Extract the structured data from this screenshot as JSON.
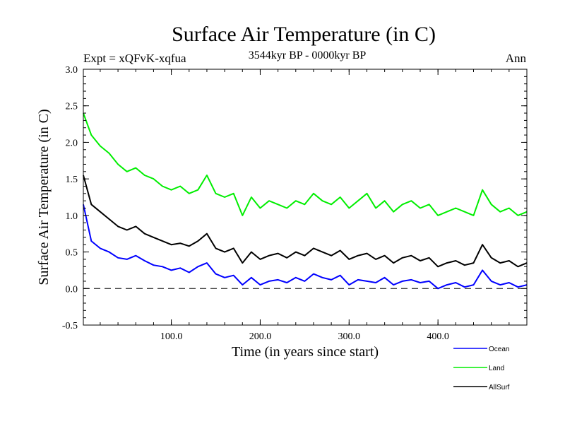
{
  "chart_data": {
    "type": "line",
    "title": "Surface Air Temperature (in C)",
    "subtitle": "3544kyr BP - 0000kyr BP",
    "experiment": "Expt = xQFvK-xqfua",
    "season": "Ann",
    "xlabel": "Time (in years since start)",
    "ylabel": "Surface Air Temperature (in C)",
    "xlim": [
      1,
      500
    ],
    "ylim": [
      -0.5,
      3.0
    ],
    "x_ticks": [
      100,
      200,
      300,
      400
    ],
    "x_tick_labels": [
      "100.0",
      "200.0",
      "300.0",
      "400.0"
    ],
    "y_ticks": [
      -0.5,
      0.0,
      0.5,
      1.0,
      1.5,
      2.0,
      2.5,
      3.0
    ],
    "y_tick_labels": [
      "-0.5",
      "0.0",
      "0.5",
      "1.0",
      "1.5",
      "2.0",
      "2.5",
      "3.0"
    ],
    "reference_line": 0.0,
    "x": [
      1,
      10,
      20,
      30,
      40,
      50,
      60,
      70,
      80,
      90,
      100,
      110,
      120,
      130,
      140,
      150,
      160,
      170,
      180,
      190,
      200,
      210,
      220,
      230,
      240,
      250,
      260,
      270,
      280,
      290,
      300,
      310,
      320,
      330,
      340,
      350,
      360,
      370,
      380,
      390,
      400,
      410,
      420,
      430,
      440,
      450,
      460,
      470,
      480,
      490,
      500
    ],
    "series": [
      {
        "name": "Ocean",
        "color": "#0000ff",
        "values": [
          1.15,
          0.65,
          0.55,
          0.5,
          0.42,
          0.4,
          0.45,
          0.38,
          0.32,
          0.3,
          0.25,
          0.28,
          0.22,
          0.3,
          0.35,
          0.2,
          0.15,
          0.18,
          0.05,
          0.15,
          0.05,
          0.1,
          0.12,
          0.08,
          0.15,
          0.1,
          0.2,
          0.15,
          0.12,
          0.18,
          0.05,
          0.12,
          0.1,
          0.08,
          0.15,
          0.05,
          0.1,
          0.12,
          0.08,
          0.1,
          0.0,
          0.05,
          0.08,
          0.02,
          0.05,
          0.25,
          0.1,
          0.05,
          0.08,
          0.02,
          0.05
        ]
      },
      {
        "name": "Land",
        "color": "#00ee00",
        "values": [
          2.4,
          2.1,
          1.95,
          1.85,
          1.7,
          1.6,
          1.65,
          1.55,
          1.5,
          1.4,
          1.35,
          1.4,
          1.3,
          1.35,
          1.55,
          1.3,
          1.25,
          1.3,
          1.0,
          1.25,
          1.1,
          1.2,
          1.15,
          1.1,
          1.2,
          1.15,
          1.3,
          1.2,
          1.15,
          1.25,
          1.1,
          1.2,
          1.3,
          1.1,
          1.2,
          1.05,
          1.15,
          1.2,
          1.1,
          1.15,
          1.0,
          1.05,
          1.1,
          1.05,
          1.0,
          1.35,
          1.15,
          1.05,
          1.1,
          1.0,
          1.05
        ]
      },
      {
        "name": "AllSurf",
        "color": "#000000",
        "values": [
          1.55,
          1.15,
          1.05,
          0.95,
          0.85,
          0.8,
          0.85,
          0.75,
          0.7,
          0.65,
          0.6,
          0.62,
          0.58,
          0.65,
          0.75,
          0.55,
          0.5,
          0.55,
          0.35,
          0.5,
          0.4,
          0.45,
          0.48,
          0.42,
          0.5,
          0.45,
          0.55,
          0.5,
          0.45,
          0.52,
          0.4,
          0.45,
          0.48,
          0.4,
          0.45,
          0.35,
          0.42,
          0.45,
          0.38,
          0.42,
          0.3,
          0.35,
          0.38,
          0.32,
          0.35,
          0.6,
          0.42,
          0.35,
          0.38,
          0.3,
          0.35
        ]
      }
    ],
    "legend": [
      "Ocean",
      "Land",
      "AllSurf"
    ],
    "legend_position": "bottom-right"
  }
}
